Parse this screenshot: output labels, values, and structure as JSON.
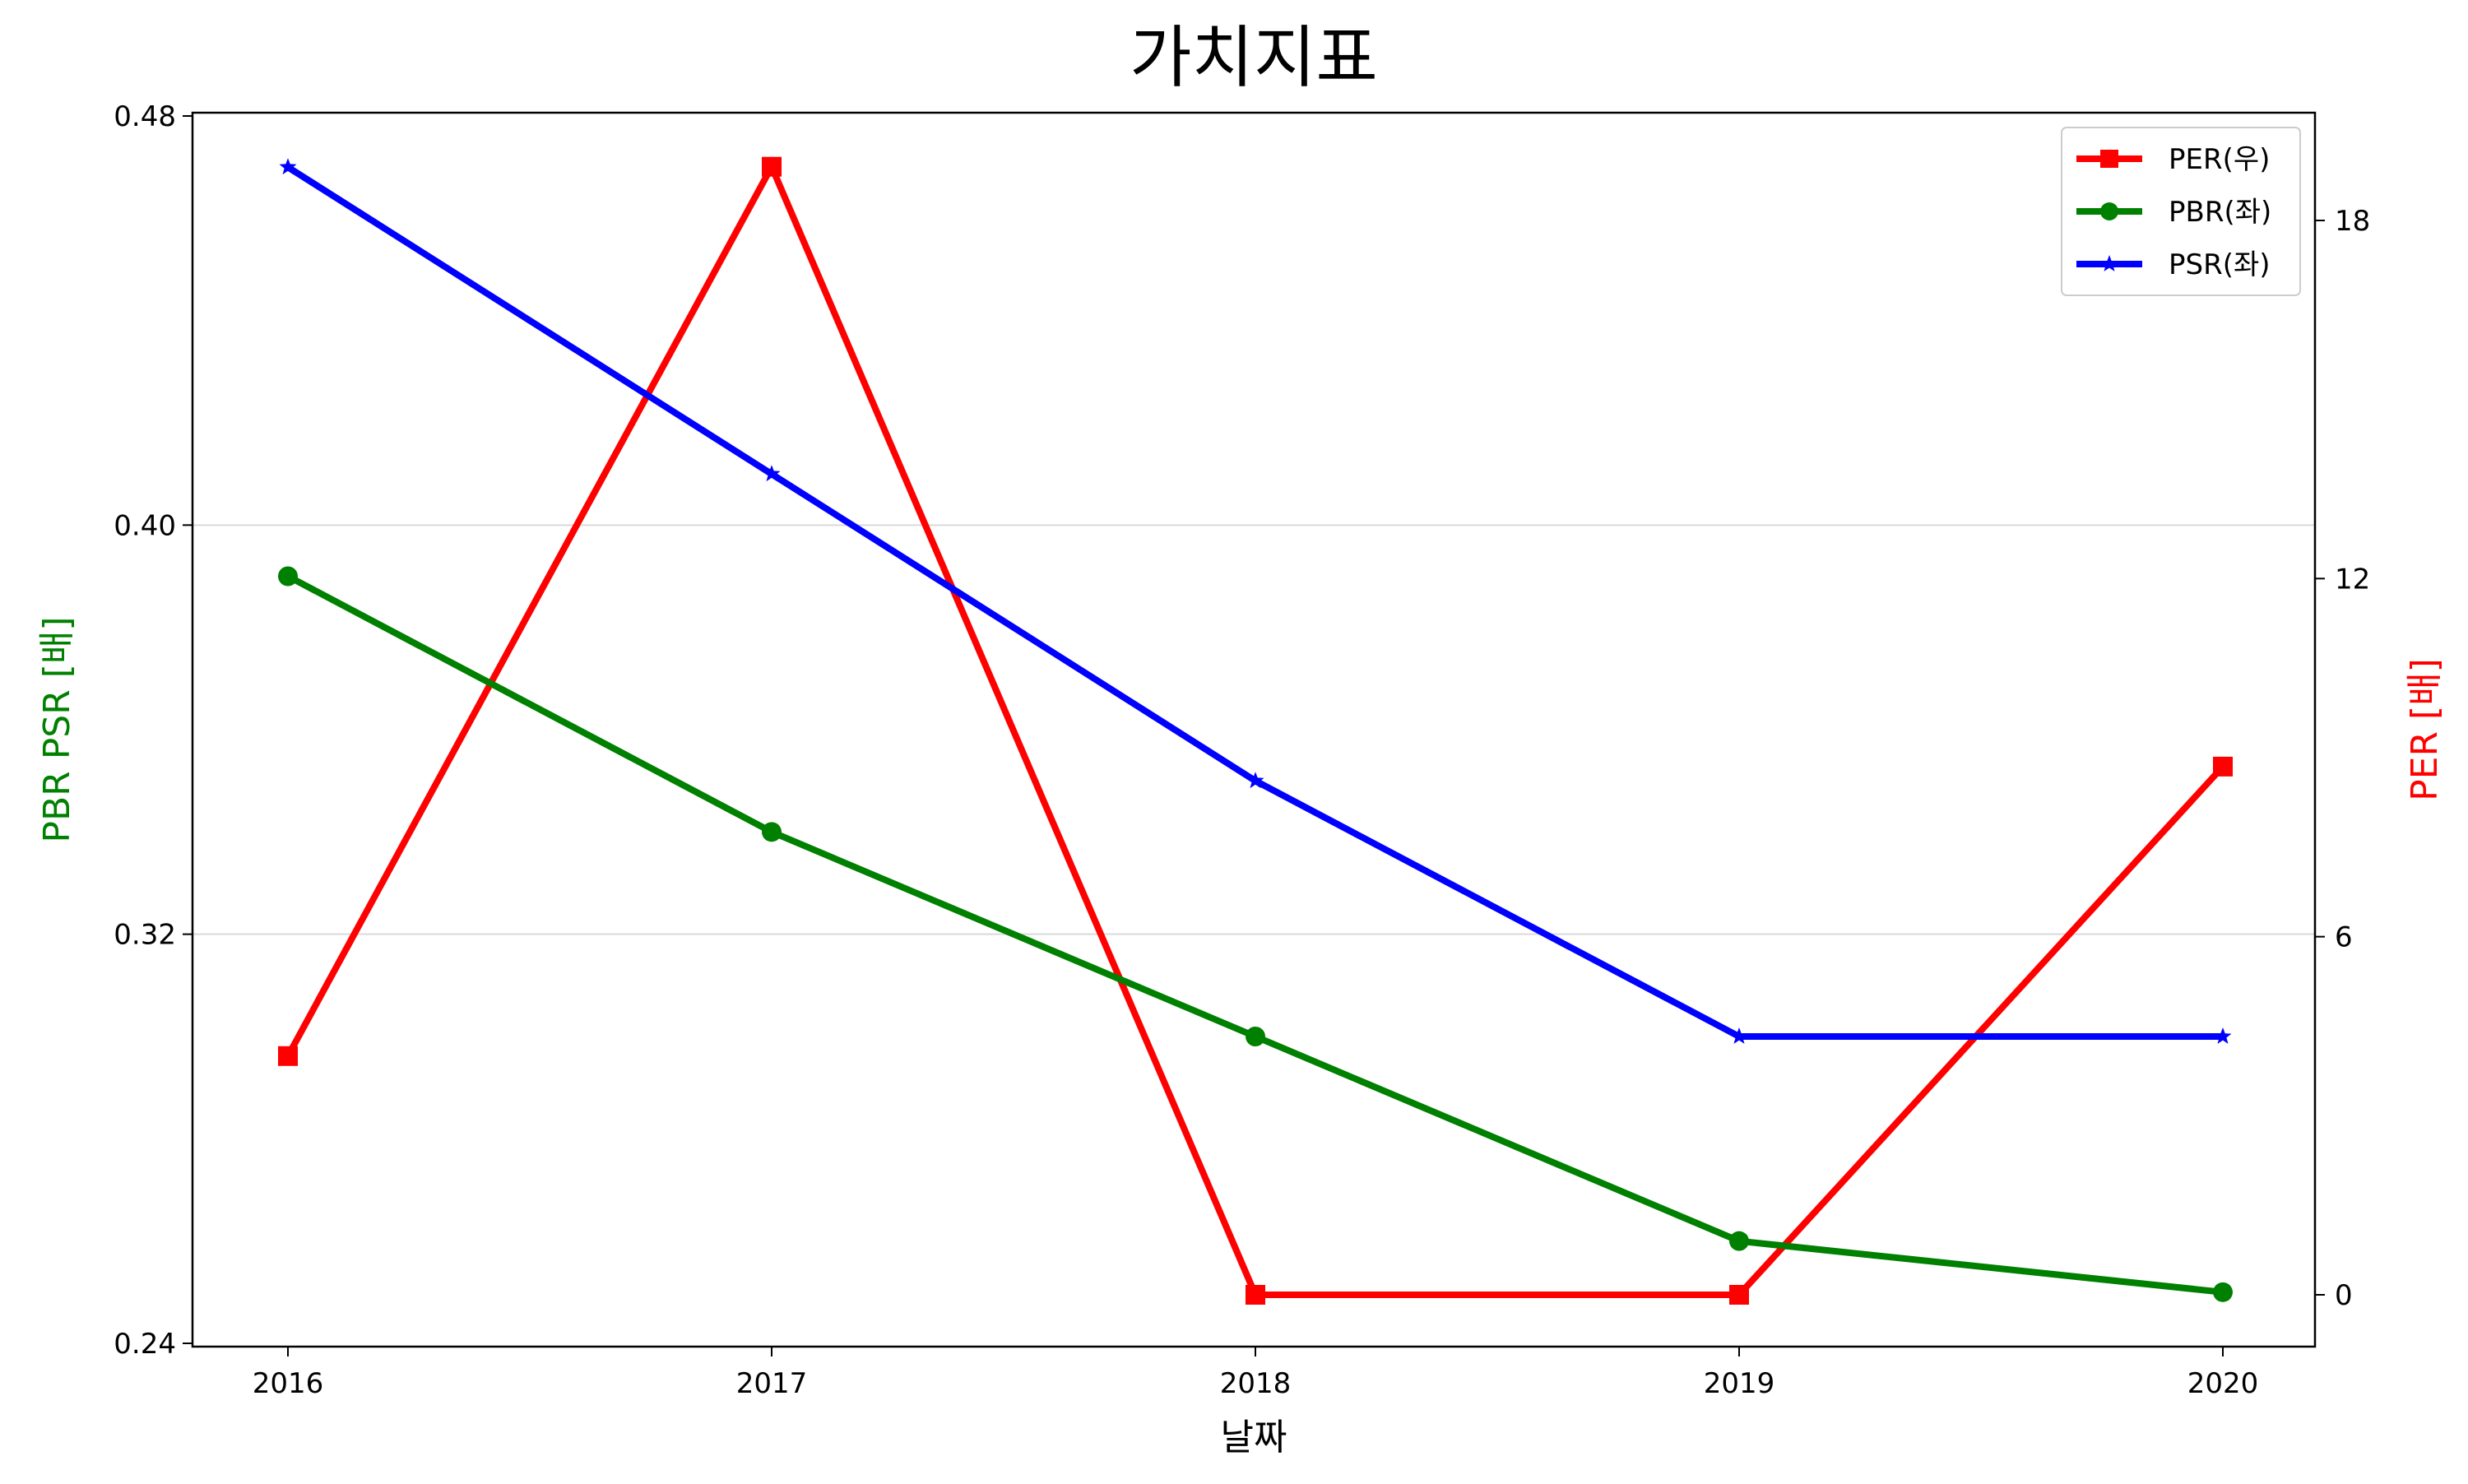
{
  "chart_data": {
    "type": "line",
    "title": "가치지표",
    "xlabel": "날짜",
    "ylabel_left": "PBR PSR [배]",
    "ylabel_right": "PER [배]",
    "categories": [
      "2016",
      "2017",
      "2018",
      "2019",
      "2020"
    ],
    "y_left": {
      "lim": [
        0.24,
        0.48
      ],
      "ticks": [
        "0.24",
        "0.32",
        "0.40",
        "0.48"
      ],
      "grid": true
    },
    "y_right": {
      "lim": [
        -1,
        20
      ],
      "ticks": [
        "0",
        "6",
        "12",
        "18"
      ]
    },
    "legend_position": "top-right",
    "series": [
      {
        "name": "PER(우)",
        "axis": "right",
        "color": "#ff0000",
        "marker": "square",
        "values": [
          4.0,
          18.9,
          0.0,
          0.0,
          8.85
        ]
      },
      {
        "name": "PBR(좌)",
        "axis": "left",
        "color": "#008000",
        "marker": "circle",
        "values": [
          0.39,
          0.34,
          0.3,
          0.26,
          0.25
        ]
      },
      {
        "name": "PSR(좌)",
        "axis": "left",
        "color": "#0000ff",
        "marker": "star",
        "values": [
          0.47,
          0.41,
          0.35,
          0.3,
          0.3
        ]
      }
    ]
  }
}
